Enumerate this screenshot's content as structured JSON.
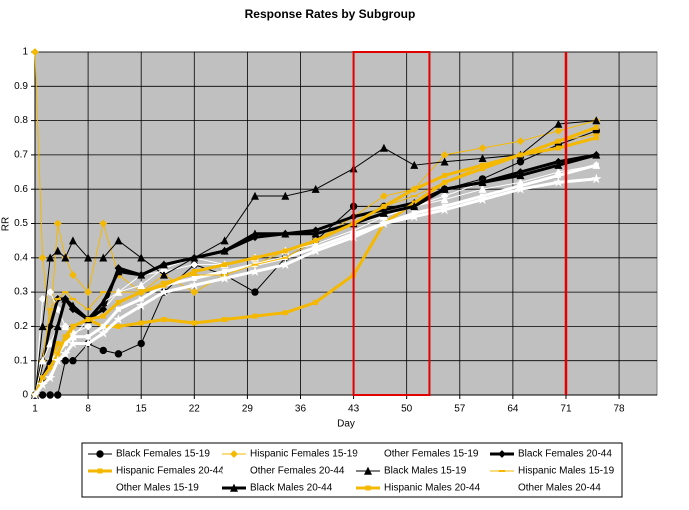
{
  "chart_data": {
    "type": "line",
    "title": "Response Rates by Subgroup",
    "x_label": "Day",
    "y_label": "RR",
    "x": [
      1,
      2,
      3,
      4,
      5,
      6,
      8,
      10,
      12,
      15,
      18,
      22,
      26,
      30,
      34,
      38,
      43,
      47,
      51,
      55,
      60,
      65,
      70,
      75
    ],
    "xlim": [
      1,
      83
    ],
    "xticks": [
      1,
      8,
      15,
      22,
      29,
      36,
      43,
      50,
      57,
      64,
      71,
      78
    ],
    "ylim": [
      0,
      1
    ],
    "yticks": [
      0,
      0.1,
      0.2,
      0.3,
      0.4,
      0.5,
      0.6,
      0.7,
      0.8,
      0.9,
      1
    ],
    "grid": true,
    "legend": "bottom",
    "highlights": [
      {
        "shape": "rect",
        "x0": 43,
        "x1": 53,
        "color": "#e00000"
      },
      {
        "shape": "vline",
        "x": 71,
        "color": "#e00000"
      }
    ],
    "series": [
      {
        "name": "Black Females 15-19",
        "color": "#000000",
        "width": 1,
        "marker": "circle",
        "values": [
          0,
          0,
          0,
          0,
          0.1,
          0.1,
          0.15,
          0.13,
          0.12,
          0.15,
          0.3,
          0.38,
          0.35,
          0.3,
          0.4,
          0.45,
          0.55,
          0.55,
          0.55,
          0.6,
          0.63,
          0.68,
          0.73,
          0.77
        ]
      },
      {
        "name": "Hispanic Females 15-19",
        "color": "#f5b800",
        "width": 1,
        "marker": "diamond",
        "values": [
          1,
          0.4,
          0.2,
          0.5,
          0.4,
          0.35,
          0.3,
          0.5,
          0.35,
          0.3,
          0.35,
          0.3,
          0.35,
          0.38,
          0.42,
          0.45,
          0.52,
          0.58,
          0.6,
          0.7,
          0.72,
          0.74,
          0.77,
          0.8
        ]
      },
      {
        "name": "Other Females 15-19",
        "color": "#ffffff",
        "width": 1,
        "marker": "diamond",
        "values": [
          0,
          0.28,
          0.3,
          0.25,
          0.2,
          0.18,
          0.2,
          0.25,
          0.3,
          0.35,
          0.36,
          0.38,
          0.38,
          0.4,
          0.42,
          0.45,
          0.5,
          0.52,
          0.55,
          0.58,
          0.62,
          0.65,
          0.67,
          0.7
        ]
      },
      {
        "name": "Black Females 20-44",
        "color": "#000000",
        "width": 3,
        "marker": "diamond",
        "values": [
          0,
          0.1,
          0.2,
          0.28,
          0.28,
          0.25,
          0.22,
          0.25,
          0.37,
          0.35,
          0.38,
          0.4,
          0.42,
          0.46,
          0.47,
          0.48,
          0.52,
          0.54,
          0.56,
          0.6,
          0.62,
          0.65,
          0.68,
          0.7
        ]
      },
      {
        "name": "Hispanic Females 20-44",
        "color": "#f5b800",
        "width": 3,
        "marker": "square",
        "values": [
          0,
          0.05,
          0.1,
          0.15,
          0.15,
          0.2,
          0.22,
          0.2,
          0.2,
          0.21,
          0.22,
          0.21,
          0.22,
          0.23,
          0.24,
          0.27,
          0.35,
          0.5,
          0.56,
          0.62,
          0.66,
          0.7,
          0.74,
          0.78
        ]
      },
      {
        "name": "Other Females 20-44",
        "color": "#ffffff",
        "width": 3,
        "marker": "square",
        "values": [
          0,
          0.05,
          0.1,
          0.12,
          0.15,
          0.17,
          0.17,
          0.2,
          0.25,
          0.28,
          0.32,
          0.34,
          0.36,
          0.38,
          0.4,
          0.43,
          0.47,
          0.5,
          0.53,
          0.55,
          0.58,
          0.61,
          0.64,
          0.67
        ]
      },
      {
        "name": "Black Males 15-19",
        "color": "#000000",
        "width": 1,
        "marker": "triangle",
        "values": [
          0,
          0.2,
          0.4,
          0.42,
          0.4,
          0.45,
          0.4,
          0.4,
          0.45,
          0.4,
          0.35,
          0.4,
          0.45,
          0.58,
          0.58,
          0.6,
          0.66,
          0.72,
          0.67,
          0.68,
          0.69,
          0.7,
          0.79,
          0.8
        ]
      },
      {
        "name": "Hispanic Males 15-19",
        "color": "#f5b800",
        "width": 1,
        "marker": "dash",
        "values": [
          0,
          0.1,
          0.25,
          0.28,
          0.3,
          0.28,
          0.25,
          0.3,
          0.3,
          0.3,
          0.33,
          0.35,
          0.35,
          0.38,
          0.4,
          0.45,
          0.5,
          0.55,
          0.58,
          0.62,
          0.67,
          0.7,
          0.74,
          0.76
        ]
      },
      {
        "name": "Other Males 15-19",
        "color": "#ffffff",
        "width": 1,
        "marker": "triangle",
        "values": [
          0,
          0.1,
          0.15,
          0.2,
          0.2,
          0.17,
          0.22,
          0.27,
          0.3,
          0.32,
          0.37,
          0.4,
          0.38,
          0.4,
          0.42,
          0.44,
          0.48,
          0.52,
          0.55,
          0.57,
          0.6,
          0.62,
          0.65,
          0.67
        ]
      },
      {
        "name": "Black Males 20-44",
        "color": "#000000",
        "width": 3,
        "marker": "triangle",
        "values": [
          0,
          0.05,
          0.1,
          0.2,
          0.28,
          0.26,
          0.22,
          0.27,
          0.36,
          0.35,
          0.38,
          0.4,
          0.42,
          0.47,
          0.47,
          0.47,
          0.5,
          0.53,
          0.55,
          0.6,
          0.62,
          0.64,
          0.67,
          0.7
        ]
      },
      {
        "name": "Hispanic Males 20-44",
        "color": "#f5b800",
        "width": 3,
        "marker": "square",
        "values": [
          0,
          0.05,
          0.08,
          0.12,
          0.17,
          0.2,
          0.22,
          0.23,
          0.27,
          0.3,
          0.32,
          0.36,
          0.38,
          0.4,
          0.42,
          0.45,
          0.5,
          0.55,
          0.6,
          0.64,
          0.67,
          0.7,
          0.72,
          0.75
        ]
      },
      {
        "name": "Other Males 20-44",
        "color": "#ffffff",
        "width": 3,
        "marker": "star",
        "values": [
          0,
          0.03,
          0.05,
          0.1,
          0.12,
          0.15,
          0.15,
          0.18,
          0.22,
          0.26,
          0.3,
          0.32,
          0.34,
          0.36,
          0.38,
          0.42,
          0.46,
          0.5,
          0.52,
          0.54,
          0.57,
          0.6,
          0.62,
          0.63
        ]
      }
    ]
  }
}
